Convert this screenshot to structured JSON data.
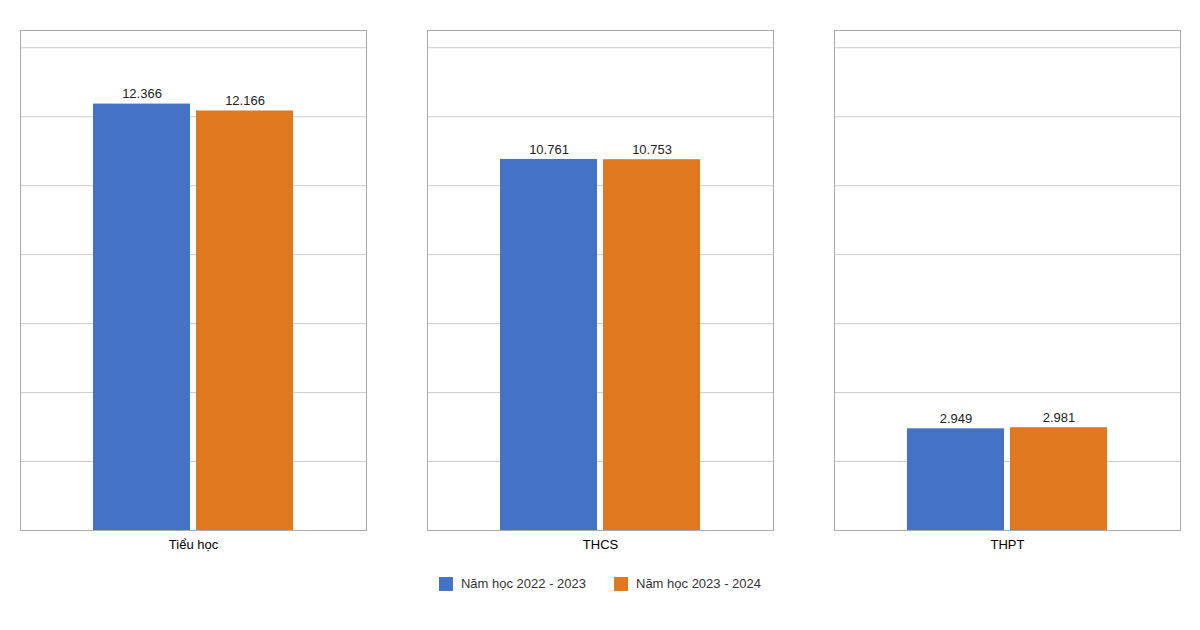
{
  "chart_data": {
    "type": "bar",
    "categories": [
      "Tiểu học",
      "THCS",
      "THPT"
    ],
    "series": [
      {
        "name": "Năm học 2022 - 2023",
        "color": "#4472C4",
        "values": [
          12366,
          10761,
          2949
        ],
        "value_labels": [
          "12.366",
          "10.761",
          "2.949"
        ]
      },
      {
        "name": "Năm học 2023 - 2024",
        "color": "#E07820",
        "values": [
          12166,
          10753,
          2981
        ],
        "value_labels": [
          "12.166",
          "10.753",
          "2.981"
        ]
      }
    ],
    "ylim": [
      0,
      14500
    ],
    "yticks": [
      0,
      2000,
      4000,
      6000,
      8000,
      10000,
      12000,
      14000
    ],
    "grid": true,
    "legend": "bottom",
    "data_labels": true,
    "tick_labels": "x"
  }
}
